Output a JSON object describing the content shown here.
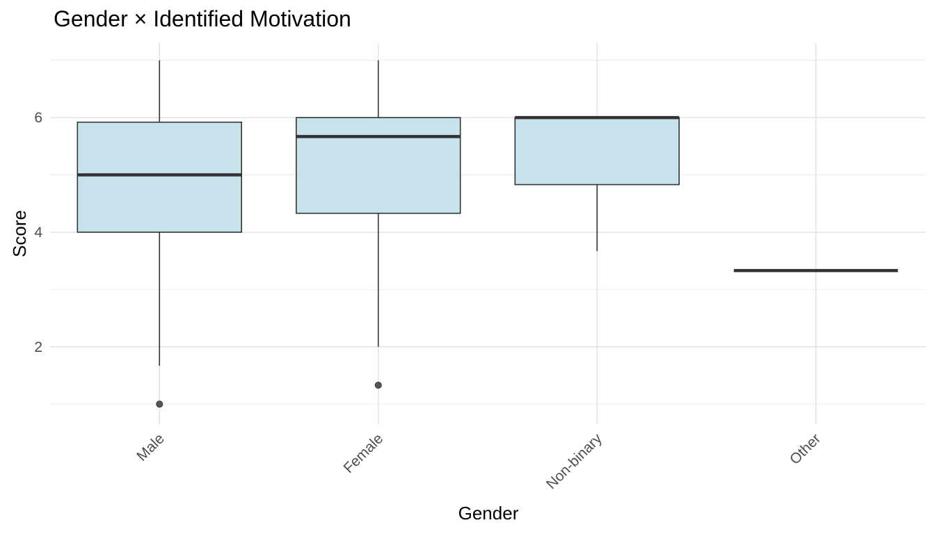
{
  "chart_data": {
    "type": "boxplot",
    "title": "Gender × Identified Motivation",
    "xlabel": "Gender",
    "ylabel": "Score",
    "categories": [
      "Male",
      "Female",
      "Non-binary",
      "Other"
    ],
    "ylim": [
      0.65,
      7.3
    ],
    "y_ticks": [
      2,
      4,
      6
    ],
    "grid": true,
    "legend": "none",
    "box_fill": "#c6e3ec",
    "box_stroke": "#333333",
    "boxes": [
      {
        "category": "Male",
        "whisker_low": 1.67,
        "q1": 4.0,
        "median": 5.0,
        "q3": 5.92,
        "whisker_high": 7.0,
        "outliers": [
          1.0
        ]
      },
      {
        "category": "Female",
        "whisker_low": 2.0,
        "q1": 4.33,
        "median": 5.67,
        "q3": 6.0,
        "whisker_high": 7.0,
        "outliers": [
          1.33
        ]
      },
      {
        "category": "Non-binary",
        "whisker_low": 3.67,
        "q1": 4.83,
        "median": 6.0,
        "q3": 6.0,
        "whisker_high": 6.0,
        "outliers": []
      },
      {
        "category": "Other",
        "whisker_low": 3.33,
        "q1": 3.33,
        "median": 3.33,
        "q3": 3.33,
        "whisker_high": 3.33,
        "outliers": []
      }
    ]
  }
}
